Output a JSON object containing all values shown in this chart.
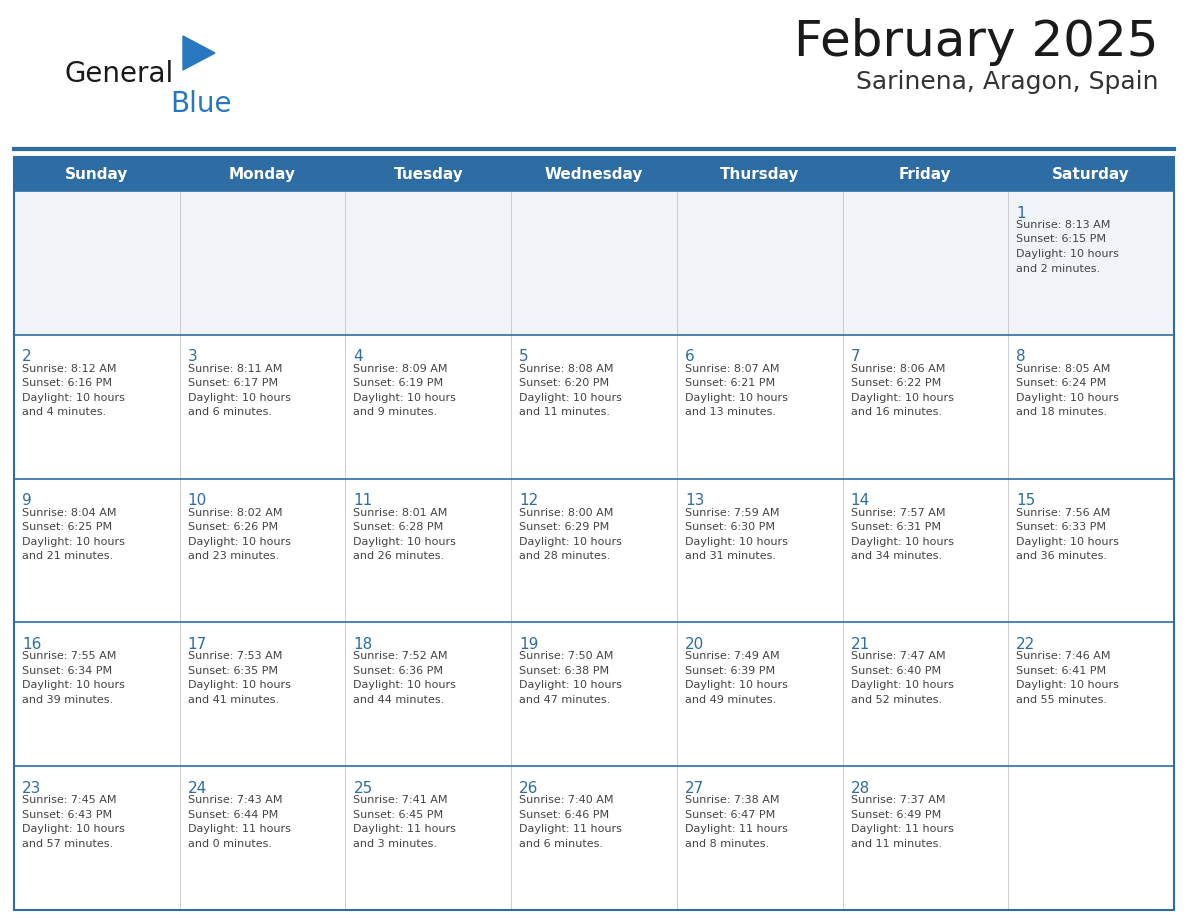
{
  "title": "February 2025",
  "subtitle": "Sarinena, Aragon, Spain",
  "days_of_week": [
    "Sunday",
    "Monday",
    "Tuesday",
    "Wednesday",
    "Thursday",
    "Friday",
    "Saturday"
  ],
  "header_bg_color": "#2E6DA4",
  "header_text_color": "#FFFFFF",
  "cell_bg_color": "#FFFFFF",
  "row1_bg_color": "#F0F4F8",
  "border_color": "#2E6DA4",
  "title_color": "#1a1a1a",
  "subtitle_color": "#333333",
  "day_number_color": "#2E6DA4",
  "cell_text_color": "#444444",
  "logo_text_color": "#1a1a1a",
  "logo_blue_color": "#2878C0",
  "cell_divider_color": "#BBBBBB",
  "calendar_data": [
    [
      {
        "day": "",
        "info": ""
      },
      {
        "day": "",
        "info": ""
      },
      {
        "day": "",
        "info": ""
      },
      {
        "day": "",
        "info": ""
      },
      {
        "day": "",
        "info": ""
      },
      {
        "day": "",
        "info": ""
      },
      {
        "day": "1",
        "info": "Sunrise: 8:13 AM\nSunset: 6:15 PM\nDaylight: 10 hours\nand 2 minutes."
      }
    ],
    [
      {
        "day": "2",
        "info": "Sunrise: 8:12 AM\nSunset: 6:16 PM\nDaylight: 10 hours\nand 4 minutes."
      },
      {
        "day": "3",
        "info": "Sunrise: 8:11 AM\nSunset: 6:17 PM\nDaylight: 10 hours\nand 6 minutes."
      },
      {
        "day": "4",
        "info": "Sunrise: 8:09 AM\nSunset: 6:19 PM\nDaylight: 10 hours\nand 9 minutes."
      },
      {
        "day": "5",
        "info": "Sunrise: 8:08 AM\nSunset: 6:20 PM\nDaylight: 10 hours\nand 11 minutes."
      },
      {
        "day": "6",
        "info": "Sunrise: 8:07 AM\nSunset: 6:21 PM\nDaylight: 10 hours\nand 13 minutes."
      },
      {
        "day": "7",
        "info": "Sunrise: 8:06 AM\nSunset: 6:22 PM\nDaylight: 10 hours\nand 16 minutes."
      },
      {
        "day": "8",
        "info": "Sunrise: 8:05 AM\nSunset: 6:24 PM\nDaylight: 10 hours\nand 18 minutes."
      }
    ],
    [
      {
        "day": "9",
        "info": "Sunrise: 8:04 AM\nSunset: 6:25 PM\nDaylight: 10 hours\nand 21 minutes."
      },
      {
        "day": "10",
        "info": "Sunrise: 8:02 AM\nSunset: 6:26 PM\nDaylight: 10 hours\nand 23 minutes."
      },
      {
        "day": "11",
        "info": "Sunrise: 8:01 AM\nSunset: 6:28 PM\nDaylight: 10 hours\nand 26 minutes."
      },
      {
        "day": "12",
        "info": "Sunrise: 8:00 AM\nSunset: 6:29 PM\nDaylight: 10 hours\nand 28 minutes."
      },
      {
        "day": "13",
        "info": "Sunrise: 7:59 AM\nSunset: 6:30 PM\nDaylight: 10 hours\nand 31 minutes."
      },
      {
        "day": "14",
        "info": "Sunrise: 7:57 AM\nSunset: 6:31 PM\nDaylight: 10 hours\nand 34 minutes."
      },
      {
        "day": "15",
        "info": "Sunrise: 7:56 AM\nSunset: 6:33 PM\nDaylight: 10 hours\nand 36 minutes."
      }
    ],
    [
      {
        "day": "16",
        "info": "Sunrise: 7:55 AM\nSunset: 6:34 PM\nDaylight: 10 hours\nand 39 minutes."
      },
      {
        "day": "17",
        "info": "Sunrise: 7:53 AM\nSunset: 6:35 PM\nDaylight: 10 hours\nand 41 minutes."
      },
      {
        "day": "18",
        "info": "Sunrise: 7:52 AM\nSunset: 6:36 PM\nDaylight: 10 hours\nand 44 minutes."
      },
      {
        "day": "19",
        "info": "Sunrise: 7:50 AM\nSunset: 6:38 PM\nDaylight: 10 hours\nand 47 minutes."
      },
      {
        "day": "20",
        "info": "Sunrise: 7:49 AM\nSunset: 6:39 PM\nDaylight: 10 hours\nand 49 minutes."
      },
      {
        "day": "21",
        "info": "Sunrise: 7:47 AM\nSunset: 6:40 PM\nDaylight: 10 hours\nand 52 minutes."
      },
      {
        "day": "22",
        "info": "Sunrise: 7:46 AM\nSunset: 6:41 PM\nDaylight: 10 hours\nand 55 minutes."
      }
    ],
    [
      {
        "day": "23",
        "info": "Sunrise: 7:45 AM\nSunset: 6:43 PM\nDaylight: 10 hours\nand 57 minutes."
      },
      {
        "day": "24",
        "info": "Sunrise: 7:43 AM\nSunset: 6:44 PM\nDaylight: 11 hours\nand 0 minutes."
      },
      {
        "day": "25",
        "info": "Sunrise: 7:41 AM\nSunset: 6:45 PM\nDaylight: 11 hours\nand 3 minutes."
      },
      {
        "day": "26",
        "info": "Sunrise: 7:40 AM\nSunset: 6:46 PM\nDaylight: 11 hours\nand 6 minutes."
      },
      {
        "day": "27",
        "info": "Sunrise: 7:38 AM\nSunset: 6:47 PM\nDaylight: 11 hours\nand 8 minutes."
      },
      {
        "day": "28",
        "info": "Sunrise: 7:37 AM\nSunset: 6:49 PM\nDaylight: 11 hours\nand 11 minutes."
      },
      {
        "day": "",
        "info": ""
      }
    ]
  ]
}
